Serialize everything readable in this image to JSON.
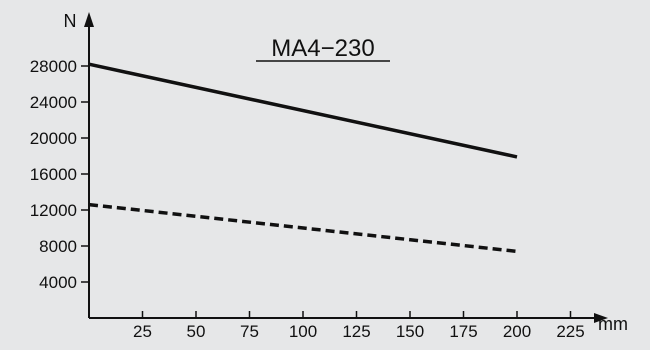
{
  "chart_data": {
    "type": "line",
    "title": "MA4−230",
    "xlabel": "mm",
    "ylabel": "N",
    "xlim": [
      0,
      230
    ],
    "ylim": [
      0,
      30000
    ],
    "x_ticks": [
      25,
      50,
      75,
      100,
      125,
      150,
      175,
      200,
      225
    ],
    "y_ticks": [
      4000,
      8000,
      12000,
      16000,
      20000,
      24000,
      28000
    ],
    "grid": false,
    "series": [
      {
        "style": "solid",
        "x": [
          0,
          200
        ],
        "y": [
          28200,
          17900
        ]
      },
      {
        "style": "dashed",
        "x": [
          0,
          200
        ],
        "y": [
          12600,
          7400
        ]
      }
    ]
  }
}
